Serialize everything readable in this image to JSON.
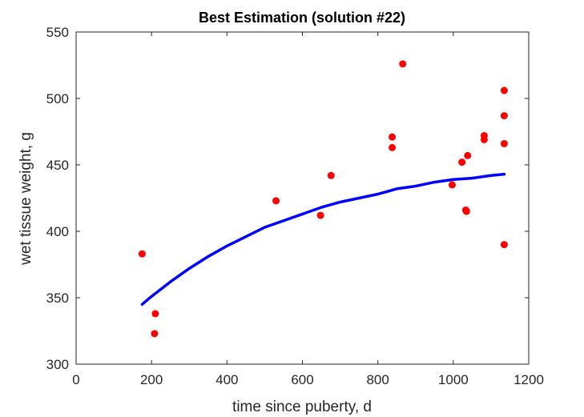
{
  "chart_data": {
    "type": "scatter",
    "title": "Best Estimation (solution #22)",
    "xlabel": "time since puberty, d",
    "ylabel": "wet tissue weight, g",
    "xlim": [
      0,
      1200
    ],
    "ylim": [
      300,
      550
    ],
    "xticks": [
      0,
      200,
      400,
      600,
      800,
      1000,
      1200
    ],
    "yticks": [
      300,
      350,
      400,
      450,
      500,
      550
    ],
    "xtick_labels": [
      "0",
      "200",
      "400",
      "600",
      "800",
      "1000",
      "1200"
    ],
    "ytick_labels": [
      "300",
      "350",
      "400",
      "450",
      "500",
      "550"
    ],
    "grid": false,
    "box": true,
    "series": [
      {
        "type": "scatter",
        "color": "#ff0000",
        "points": [
          [
            175,
            383
          ],
          [
            208,
            323
          ],
          [
            210,
            338
          ],
          [
            530,
            423
          ],
          [
            648,
            412
          ],
          [
            676,
            442
          ],
          [
            838,
            471
          ],
          [
            838,
            463
          ],
          [
            866,
            526
          ],
          [
            997,
            435
          ],
          [
            1023,
            452
          ],
          [
            1033,
            416
          ],
          [
            1035,
            415
          ],
          [
            1038,
            457
          ],
          [
            1082,
            472
          ],
          [
            1082,
            469
          ],
          [
            1135,
            506
          ],
          [
            1135,
            487
          ],
          [
            1135,
            466
          ],
          [
            1135,
            390
          ]
        ]
      },
      {
        "type": "line",
        "color": "#0000ff",
        "points": [
          [
            175,
            345
          ],
          [
            200,
            351
          ],
          [
            250,
            362
          ],
          [
            300,
            372
          ],
          [
            350,
            381
          ],
          [
            400,
            389
          ],
          [
            450,
            396
          ],
          [
            500,
            403
          ],
          [
            550,
            408
          ],
          [
            600,
            413
          ],
          [
            650,
            418
          ],
          [
            700,
            422
          ],
          [
            750,
            425
          ],
          [
            800,
            428
          ],
          [
            850,
            432
          ],
          [
            900,
            434
          ],
          [
            950,
            437
          ],
          [
            1000,
            439
          ],
          [
            1050,
            440
          ],
          [
            1100,
            442
          ],
          [
            1135,
            443
          ]
        ]
      }
    ]
  }
}
